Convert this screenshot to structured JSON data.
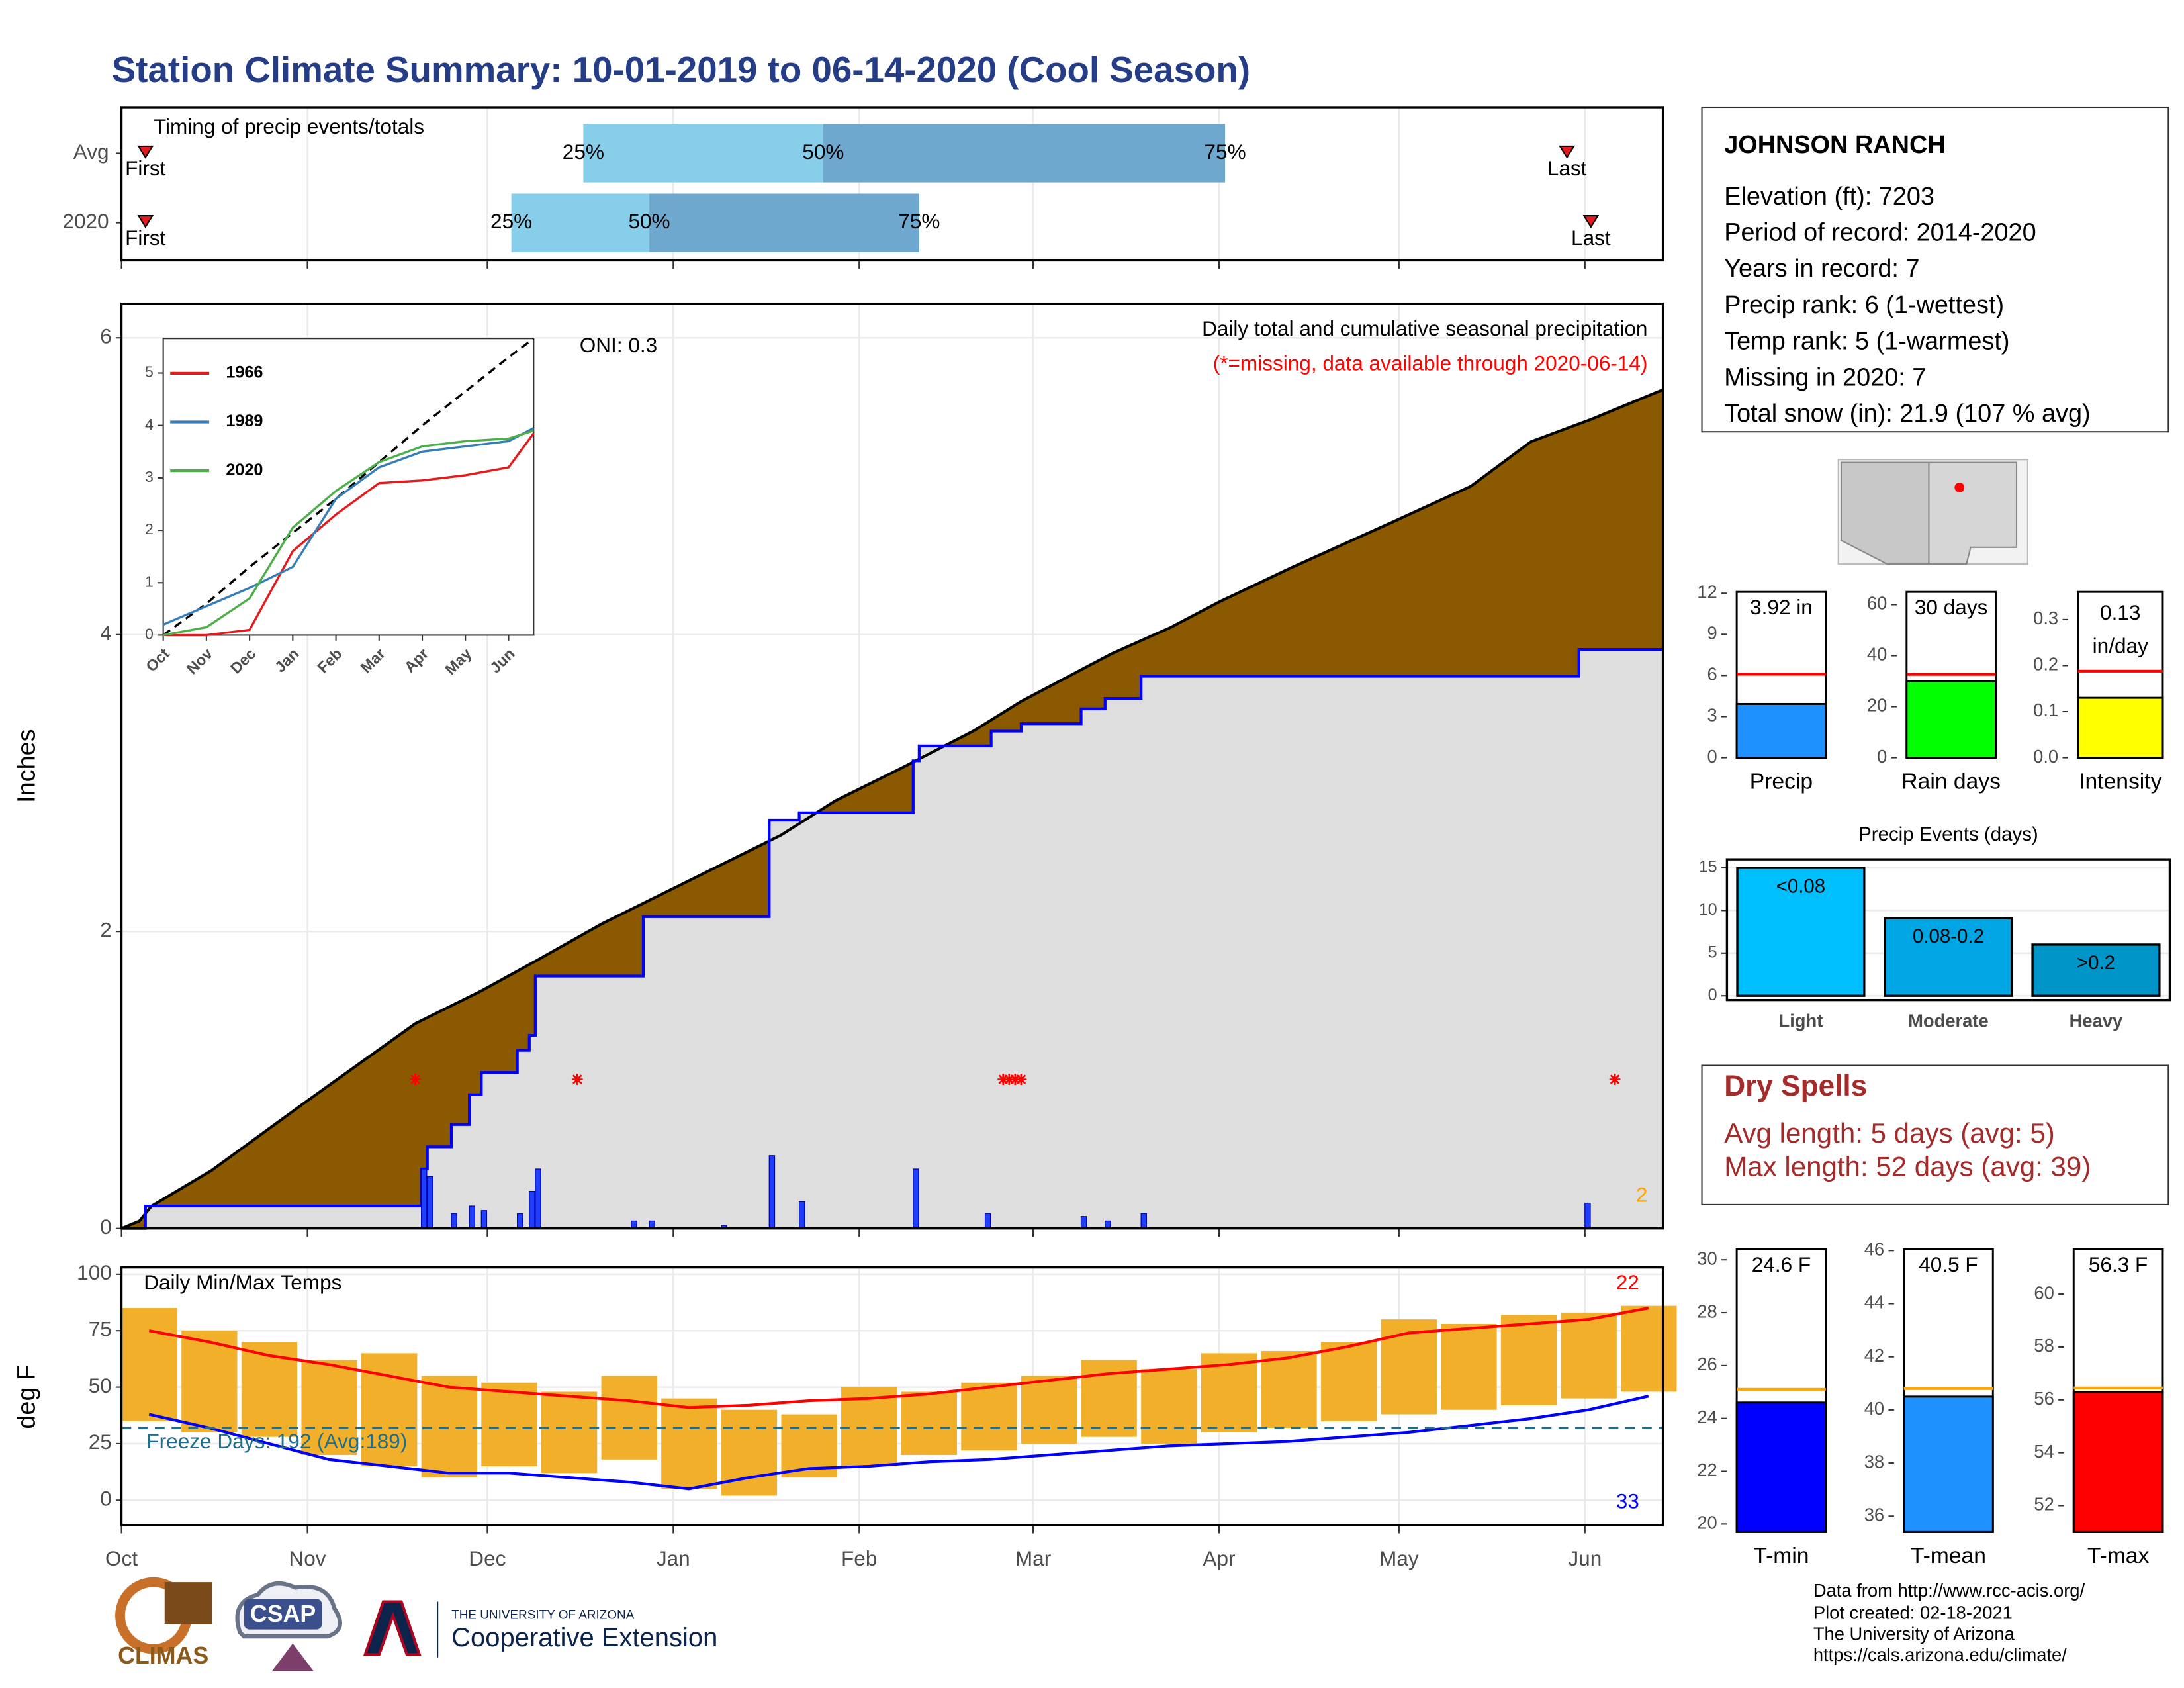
{
  "title": "Station Climate Summary: 10-01-2019 to 06-14-2020 (Cool Season)",
  "station": {
    "name": "JOHNSON RANCH",
    "lines": [
      "Elevation (ft): 7203",
      "Period of record: 2014-2020",
      "Years in record: 7",
      "Precip rank: 6 (1-wettest)",
      "Temp rank: 5 (1-warmest)",
      "Missing in 2020: 7",
      "Total snow (in): 21.9 (107 % avg)"
    ]
  },
  "dry_spells": {
    "title": "Dry Spells",
    "lines": [
      "Avg length: 5 days (avg: 5)",
      "Max length: 52 days (avg: 39)"
    ]
  },
  "credits": [
    "Data from http://www.rcc-acis.org/",
    "Plot created: 02-18-2021",
    "The University of Arizona",
    "https://cals.arizona.edu/climate/"
  ],
  "logos": {
    "climas": "CLIMAS",
    "csap": "CSAP",
    "university": "THE UNIVERSITY OF ARIZONA",
    "extension": "Cooperative Extension"
  },
  "chart_data": [
    {
      "type": "timing",
      "title": "Timing of precip events/totals",
      "rows": [
        {
          "name": "Avg",
          "first": 4,
          "p25": 77,
          "p50": 117,
          "p75": 184,
          "last": 241
        },
        {
          "name": "2020",
          "first": 4,
          "p25": 65,
          "p50": 88,
          "p75": 133,
          "last": 245
        }
      ],
      "percentile_labels": [
        "25%",
        "50%",
        "75%"
      ],
      "event_labels": [
        "First",
        "Last"
      ],
      "colors": [
        "#87ceeb",
        "#6fa8cf",
        "#e41a1c"
      ]
    },
    {
      "type": "cumulative",
      "title": "Daily total and cumulative seasonal precipitation",
      "subtitle": "(*=missing, data available through 2020-06-14)",
      "annotation": "ONI: 0.3",
      "corner_label": "2",
      "ylabel": "Inches",
      "ylim": [
        0,
        6.23
      ],
      "yticks": [
        0,
        2,
        4,
        6
      ],
      "grid": true,
      "average": {
        "color": "#8b5a00",
        "x": [
          0,
          3,
          5,
          15,
          31,
          49,
          60,
          69,
          80,
          96,
          110,
          119,
          130,
          142,
          150,
          165,
          175,
          183,
          195,
          212,
          225,
          235,
          245,
          257
        ],
        "values": [
          0,
          0.05,
          0.15,
          0.39,
          0.86,
          1.38,
          1.6,
          1.8,
          2.05,
          2.37,
          2.65,
          2.88,
          3.1,
          3.35,
          3.55,
          3.87,
          4.05,
          4.22,
          4.45,
          4.76,
          5.0,
          5.3,
          5.45,
          5.65
        ]
      },
      "season": {
        "color": "#0000ff",
        "fill": "#dedede",
        "x": [
          0,
          4,
          50,
          51,
          55,
          58,
          60,
          66,
          68,
          69,
          87,
          108,
          113,
          132,
          133,
          145,
          150,
          160,
          164,
          170,
          243,
          257
        ],
        "values": [
          0,
          0.15,
          0.4,
          0.55,
          0.7,
          0.9,
          1.05,
          1.2,
          1.3,
          1.7,
          2.1,
          2.75,
          2.8,
          3.15,
          3.25,
          3.35,
          3.4,
          3.5,
          3.57,
          3.72,
          3.9,
          3.9
        ]
      },
      "daily": {
        "color": "#1f3fff",
        "x": [
          50,
          51,
          55,
          58,
          60,
          66,
          68,
          69,
          85,
          88,
          100,
          108,
          113,
          132,
          144,
          160,
          164,
          170,
          244
        ],
        "values": [
          0.4,
          0.35,
          0.1,
          0.15,
          0.12,
          0.1,
          0.25,
          0.4,
          0.05,
          0.05,
          0.02,
          0.49,
          0.18,
          0.4,
          0.1,
          0.08,
          0.05,
          0.1,
          0.17
        ]
      },
      "missing": {
        "color": "#ff0000",
        "x": [
          49,
          76,
          147,
          148,
          149,
          150,
          249
        ]
      }
    },
    {
      "type": "line",
      "xlim": [
        0,
        8.58
      ],
      "ylim": [
        0,
        5.66
      ],
      "xticks": [
        {
          "value": 0,
          "label": "Oct"
        },
        {
          "value": 1,
          "label": "Nov"
        },
        {
          "value": 2,
          "label": "Dec"
        },
        {
          "value": 3,
          "label": "Jan"
        },
        {
          "value": 4,
          "label": "Feb"
        },
        {
          "value": 5,
          "label": "Mar"
        },
        {
          "value": 6,
          "label": "Apr"
        },
        {
          "value": 7,
          "label": "May"
        },
        {
          "value": 8,
          "label": "Jun"
        }
      ],
      "yticks": [
        0,
        1,
        2,
        3,
        4,
        5
      ],
      "x": [
        0,
        1,
        2,
        3,
        4,
        5,
        6,
        7,
        8,
        8.58
      ],
      "average": {
        "color": "#000000",
        "values": [
          0,
          0.6,
          1.3,
          1.95,
          2.6,
          3.3,
          4.0,
          4.65,
          5.3,
          5.66
        ]
      },
      "series": [
        {
          "name": "1966",
          "color": "#e41a1c",
          "values": [
            0,
            0,
            0.1,
            1.6,
            2.3,
            2.9,
            2.95,
            3.05,
            3.2,
            3.85
          ]
        },
        {
          "name": "1989",
          "color": "#377eb8",
          "values": [
            0.2,
            0.55,
            0.9,
            1.3,
            2.6,
            3.2,
            3.5,
            3.6,
            3.7,
            3.95
          ]
        },
        {
          "name": "2020",
          "color": "#4daf4a",
          "values": [
            0,
            0.15,
            0.7,
            2.05,
            2.75,
            3.3,
            3.6,
            3.7,
            3.75,
            3.9
          ]
        }
      ]
    },
    {
      "type": "range_bars",
      "title": "Daily Min/Max Temps",
      "ylabel": "deg F",
      "freeze_label": "Freeze Days: 192 (Avg:189)",
      "high_label": "22",
      "low_label": "33",
      "xlim": [
        0,
        257
      ],
      "ylim": [
        -11,
        103
      ],
      "xticks": [
        {
          "value": 0,
          "label": "Oct"
        },
        {
          "value": 31,
          "label": "Nov"
        },
        {
          "value": 61,
          "label": "Dec"
        },
        {
          "value": 92,
          "label": "Jan"
        },
        {
          "value": 123,
          "label": "Feb"
        },
        {
          "value": 152,
          "label": "Mar"
        },
        {
          "value": 183,
          "label": "Apr"
        },
        {
          "value": 213,
          "label": "May"
        },
        {
          "value": 244,
          "label": "Jun"
        }
      ],
      "yticks": [
        0,
        25,
        50,
        75,
        100
      ],
      "grid": true,
      "freeze": 32,
      "freeze_color": "#1f6e8c",
      "color": "#f2b02a",
      "x": [
        0,
        10,
        20,
        30,
        40,
        50,
        60,
        70,
        80,
        90,
        100,
        110,
        120,
        130,
        140,
        150,
        160,
        170,
        180,
        190,
        200,
        210,
        220,
        230,
        240,
        250
      ],
      "high": [
        85,
        75,
        70,
        62,
        65,
        55,
        52,
        48,
        55,
        45,
        40,
        38,
        50,
        48,
        52,
        55,
        62,
        58,
        65,
        66,
        70,
        80,
        78,
        82,
        83,
        86
      ],
      "low": [
        35,
        30,
        28,
        20,
        15,
        10,
        15,
        12,
        18,
        5,
        2,
        10,
        15,
        20,
        22,
        25,
        28,
        25,
        30,
        32,
        35,
        38,
        40,
        42,
        45,
        48
      ],
      "normal_high": {
        "color": "#ff0000",
        "values": [
          75,
          70,
          64,
          60,
          55,
          50,
          48,
          46,
          44,
          41,
          42,
          44,
          45,
          47,
          50,
          53,
          56,
          58,
          60,
          63,
          68,
          74,
          76,
          78,
          80,
          85
        ]
      },
      "normal_low": {
        "color": "#0000ff",
        "values": [
          38,
          32,
          25,
          18,
          15,
          12,
          12,
          10,
          8,
          5,
          10,
          14,
          15,
          17,
          18,
          20,
          22,
          24,
          25,
          26,
          28,
          30,
          33,
          36,
          40,
          46
        ]
      }
    },
    {
      "type": "gauge",
      "value": 3.92,
      "value_label": "3.92 in",
      "average": 6.1,
      "average_color": "#ff0000",
      "color": "#1e90ff",
      "ylim": [
        0,
        12.1
      ],
      "yticks": [
        0,
        3,
        6,
        9,
        12
      ],
      "xlabel": "Precip"
    },
    {
      "type": "gauge",
      "value": 30,
      "value_label": "30 days",
      "average": 32.7,
      "average_color": "#ff0000",
      "color": "#00ff00",
      "ylim": [
        0,
        65
      ],
      "yticks": [
        0,
        20,
        40,
        60
      ],
      "xlabel": "Rain days"
    },
    {
      "type": "gauge",
      "value": 0.13,
      "value_label": "0.13",
      "unit_label": "in/day",
      "average": 0.188,
      "average_color": "#ff0000",
      "color": "#ffff00",
      "ylim": [
        0,
        0.36
      ],
      "yticks": [
        {
          "value": 0,
          "label": "0.0"
        },
        0.1,
        0.2,
        0.3
      ],
      "xlabel": "Intensity"
    },
    {
      "type": "bar",
      "title": "Precip Events (days)",
      "categories": [
        "Light",
        "Moderate",
        "Heavy"
      ],
      "values": [
        15,
        9.1,
        6
      ],
      "value_labels": [
        "<0.08",
        "0.08-0.2",
        ">0.2"
      ],
      "colors": [
        "#00bfff",
        "#00a5e3",
        "#0095c8"
      ],
      "ylim": [
        -0.5,
        16
      ],
      "yticks": [
        0,
        5,
        10,
        15
      ],
      "grid": true
    },
    {
      "type": "gauge",
      "value": 24.6,
      "value_label": "24.6 F",
      "average": 25.1,
      "average_color": "#ffa500",
      "color": "#0000ff",
      "ylim": [
        19.7,
        30.4
      ],
      "yticks": [
        20,
        22,
        24,
        26,
        28,
        30
      ],
      "xlabel": "T-min"
    },
    {
      "type": "gauge",
      "value": 40.5,
      "value_label": "40.5 F",
      "average": 40.8,
      "average_color": "#ffa500",
      "color": "#1e90ff",
      "ylim": [
        35.4,
        46.05
      ],
      "yticks": [
        36,
        38,
        40,
        42,
        44,
        46
      ],
      "xlabel": "T-mean"
    },
    {
      "type": "gauge",
      "value": 56.3,
      "value_label": "56.3 F",
      "average": 56.45,
      "average_color": "#ffa500",
      "color": "#ff0000",
      "ylim": [
        51,
        61.7
      ],
      "yticks": [
        52,
        54,
        56,
        58,
        60
      ],
      "xlabel": "T-max"
    }
  ]
}
